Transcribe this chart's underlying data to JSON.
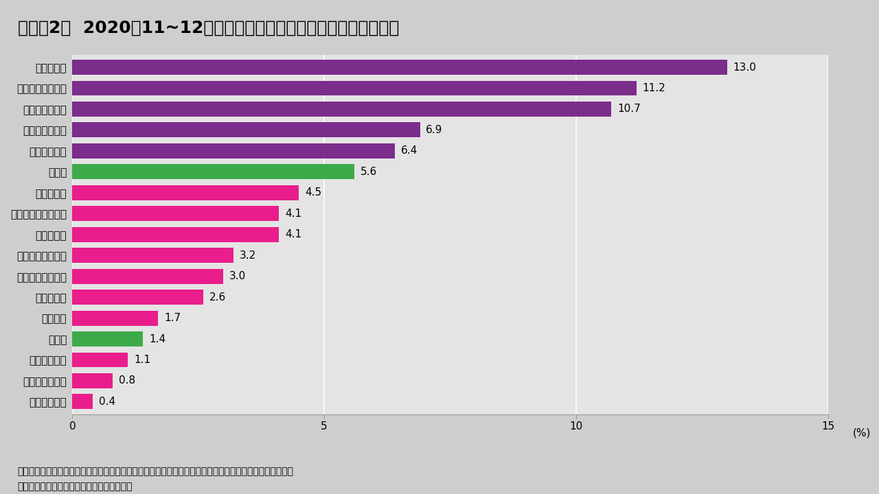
{
  "title": "（図表2）  2020年11~12月における主要国通貨の対ドルでの騰落率",
  "categories": [
    "ベトナムドン",
    "フィリピンペソ",
    "インドルピー",
    "日本円",
    "台湾ドル",
    "中国人民元",
    "マレーシアリンギ",
    "シンガポールドル",
    "タイバーツ",
    "インドネシアルピア",
    "韓国ウォン",
    "ユーロ",
    "メキシコペソ",
    "ロシアルーブル",
    "ブラジルレアル",
    "南アフリカランド",
    "トルコリラ"
  ],
  "values": [
    0.4,
    0.8,
    1.1,
    1.4,
    1.7,
    2.6,
    3.0,
    3.2,
    4.1,
    4.1,
    4.5,
    5.6,
    6.4,
    6.9,
    10.7,
    11.2,
    13.0
  ],
  "colors": [
    "#E91E8C",
    "#E91E8C",
    "#E91E8C",
    "#3DAA4A",
    "#E91E8C",
    "#E91E8C",
    "#E91E8C",
    "#E91E8C",
    "#E91E8C",
    "#E91E8C",
    "#E91E8C",
    "#3DAA4A",
    "#7B2D8B",
    "#7B2D8B",
    "#7B2D8B",
    "#7B2D8B",
    "#7B2D8B"
  ],
  "xlim": [
    0,
    15
  ],
  "xticks": [
    0,
    5,
    10,
    15
  ],
  "xlabel": "(%)",
  "note1": "（注）棒グラフの紫色はアジア以外の新興国を、赤色はアジア新興国を、緑色は先進国を、それぞれ表す。",
  "note2": "（出所）ブルームバーグよりインベスコ作成",
  "background_color": "#CECECE",
  "plot_background_color": "#E4E4E4",
  "title_fontsize": 18,
  "bar_height": 0.72,
  "label_fontsize": 11,
  "ytick_fontsize": 11,
  "xtick_fontsize": 11,
  "note_fontsize": 10
}
